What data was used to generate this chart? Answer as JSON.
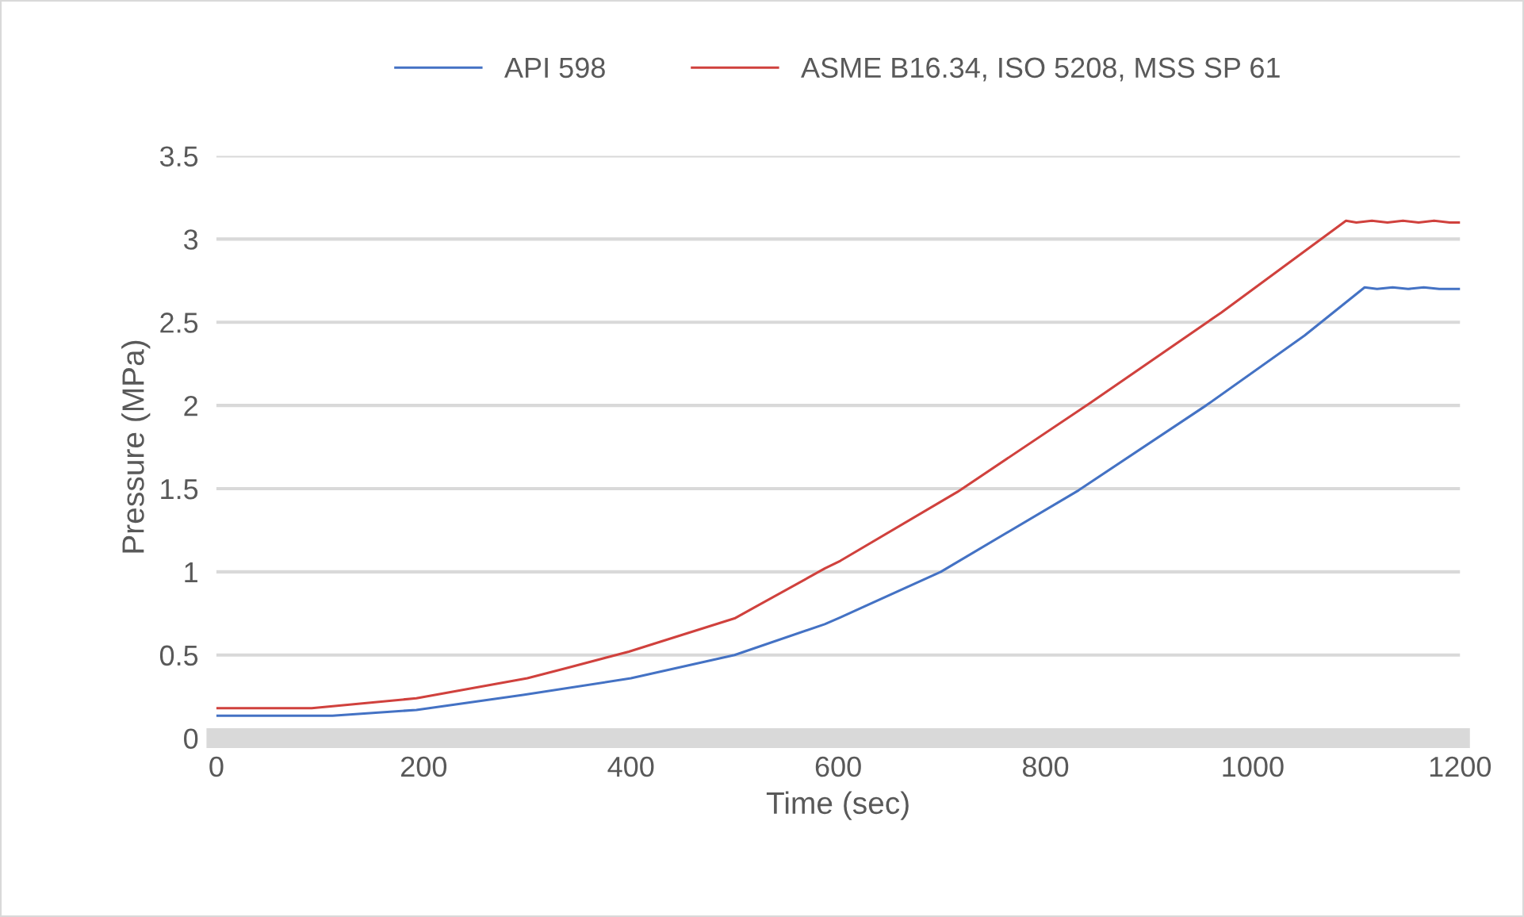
{
  "chart_data": {
    "type": "line",
    "xlabel": "Time (sec)",
    "ylabel": "Pressure (MPa)",
    "xlim": [
      0,
      1200
    ],
    "xticks": [
      0,
      200,
      400,
      600,
      800,
      1000,
      1200
    ],
    "ylim": [
      0,
      3.5
    ],
    "yticks": [
      0,
      0.5,
      1,
      1.5,
      2,
      2.5,
      3,
      3.5
    ],
    "grid": "y",
    "legend": "top",
    "marker": "none",
    "line_style": "solid",
    "series": [
      {
        "name": "API 598",
        "color": "#4472c4",
        "x": [
          0,
          50,
          112,
          193,
          296,
          400,
          500,
          587,
          602,
          699,
          832,
          955,
          1050,
          1108,
          1120,
          1135,
          1150,
          1165,
          1180,
          1200
        ],
        "values": [
          0.135,
          0.135,
          0.135,
          0.17,
          0.26,
          0.36,
          0.5,
          0.685,
          0.726,
          1.0,
          1.49,
          2.0,
          2.42,
          2.71,
          2.7,
          2.71,
          2.7,
          2.71,
          2.7,
          2.7
        ]
      },
      {
        "name": "ASME B16.34, ISO 5208, MSS SP 61",
        "color": "#d0413d",
        "x": [
          0,
          50,
          92,
          193,
          300,
          337,
          398,
          500,
          587,
          602,
          715,
          842,
          970,
          1090,
          1100,
          1115,
          1130,
          1145,
          1160,
          1175,
          1190,
          1200
        ],
        "values": [
          0.18,
          0.18,
          0.18,
          0.24,
          0.36,
          0.42,
          0.52,
          0.72,
          1.02,
          1.066,
          1.48,
          2.01,
          2.56,
          3.11,
          3.1,
          3.11,
          3.1,
          3.11,
          3.1,
          3.11,
          3.1,
          3.1
        ]
      }
    ]
  }
}
